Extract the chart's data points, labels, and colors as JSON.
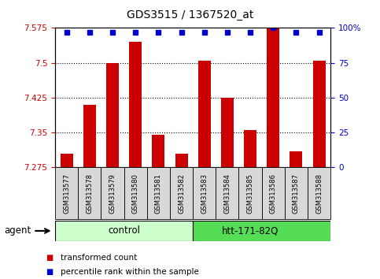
{
  "title": "GDS3515 / 1367520_at",
  "samples": [
    "GSM313577",
    "GSM313578",
    "GSM313579",
    "GSM313580",
    "GSM313581",
    "GSM313582",
    "GSM313583",
    "GSM313584",
    "GSM313585",
    "GSM313586",
    "GSM313587",
    "GSM313588"
  ],
  "bar_values": [
    7.305,
    7.41,
    7.5,
    7.545,
    7.345,
    7.305,
    7.505,
    7.425,
    7.355,
    7.575,
    7.31,
    7.505
  ],
  "percentile_values": [
    97,
    97,
    97,
    97,
    97,
    97,
    97,
    97,
    97,
    100,
    97,
    97
  ],
  "baseline": 7.275,
  "ylim_left": [
    7.275,
    7.575
  ],
  "ylim_right": [
    0,
    100
  ],
  "yticks_left": [
    7.275,
    7.35,
    7.425,
    7.5,
    7.575
  ],
  "yticks_right": [
    0,
    25,
    50,
    75,
    100
  ],
  "ytick_labels_left": [
    "7.275",
    "7.35",
    "7.425",
    "7.5",
    "7.575"
  ],
  "ytick_labels_right": [
    "0",
    "25",
    "50",
    "75",
    "100%"
  ],
  "grid_values": [
    7.35,
    7.425,
    7.5
  ],
  "bar_color": "#cc0000",
  "dot_color": "#0000cc",
  "control_label": "control",
  "treatment_label": "htt-171-82Q",
  "agent_label": "agent",
  "control_color": "#ccffcc",
  "treatment_color": "#55dd55",
  "legend_red_label": "transformed count",
  "legend_blue_label": "percentile rank within the sample",
  "plot_bg_color": "#ffffff",
  "tick_color_left": "#cc0000",
  "tick_color_right": "#0000cc",
  "bar_width": 0.55,
  "n_control": 6,
  "n_treatment": 6
}
